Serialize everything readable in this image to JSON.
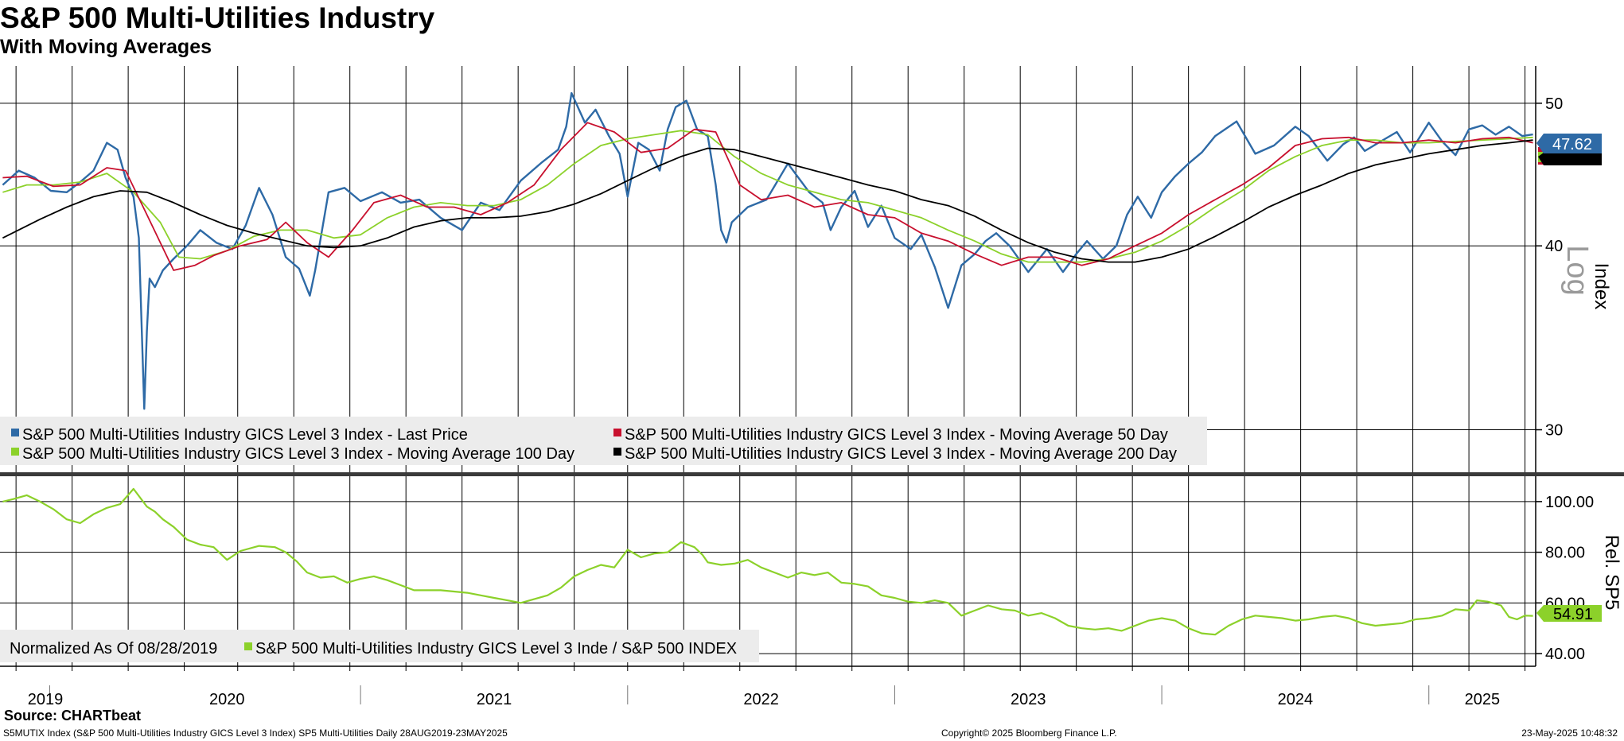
{
  "header": {
    "title": "S&P 500 Multi-Utilities Industry",
    "subtitle": "With Moving Averages"
  },
  "footer": {
    "source": "Source: CHARTbeat",
    "ticker_info": "S5MUTIX Index (S&P 500 Multi-Utilities Industry GICS Level 3 Index) SP5 Multi-Utilities  Daily 28AUG2019-23MAY2025",
    "copyright": "Copyright© 2025 Bloomberg Finance L.P.",
    "timestamp": "23-May-2025 10:48:32"
  },
  "colors": {
    "price": "#2e6aa6",
    "ma50": "#c8102e",
    "ma100": "#8cd12a",
    "ma200": "#000000",
    "relative": "#8cd12a",
    "grid": "#000000"
  },
  "chart_data": [
    {
      "type": "line",
      "panel": "upper",
      "scale": "log",
      "ylabel": "Index",
      "scale_label": "Log",
      "ylim": [
        28.0,
        53.0
      ],
      "yticks": [
        "50",
        "40",
        "30"
      ],
      "ytick_values": [
        50,
        40,
        30
      ],
      "xlim": [
        2019.65,
        2025.4
      ],
      "series": [
        {
          "name": "S&P 500 Multi-Utilities Industry GICS Level 3 Index - Last Price",
          "color_key": "price",
          "last_value": "47.62",
          "x": [
            2019.66,
            2019.72,
            2019.78,
            2019.84,
            2019.9,
            2019.95,
            2020.0,
            2020.05,
            2020.09,
            2020.12,
            2020.15,
            2020.17,
            2020.19,
            2020.2,
            2020.21,
            2020.23,
            2020.26,
            2020.3,
            2020.35,
            2020.4,
            2020.46,
            2020.52,
            2020.57,
            2020.62,
            2020.67,
            2020.72,
            2020.77,
            2020.81,
            2020.83,
            2020.88,
            2020.94,
            2021.0,
            2021.08,
            2021.15,
            2021.22,
            2021.3,
            2021.38,
            2021.45,
            2021.52,
            2021.6,
            2021.68,
            2021.74,
            2021.77,
            2021.79,
            2021.84,
            2021.88,
            2021.93,
            2021.97,
            2022.0,
            2022.04,
            2022.08,
            2022.12,
            2022.15,
            2022.18,
            2022.22,
            2022.26,
            2022.3,
            2022.33,
            2022.35,
            2022.37,
            2022.39,
            2022.45,
            2022.52,
            2022.6,
            2022.68,
            2022.73,
            2022.76,
            2022.8,
            2022.85,
            2022.9,
            2022.95,
            2023.0,
            2023.06,
            2023.1,
            2023.15,
            2023.2,
            2023.25,
            2023.3,
            2023.34,
            2023.38,
            2023.43,
            2023.5,
            2023.57,
            2023.63,
            2023.68,
            2023.72,
            2023.78,
            2023.83,
            2023.87,
            2023.91,
            2023.96,
            2024.0,
            2024.05,
            2024.1,
            2024.15,
            2024.2,
            2024.28,
            2024.35,
            2024.42,
            2024.5,
            2024.55,
            2024.62,
            2024.68,
            2024.72,
            2024.76,
            2024.82,
            2024.88,
            2024.93,
            2025.0,
            2025.05,
            2025.1,
            2025.15,
            2025.2,
            2025.25,
            2025.3,
            2025.35,
            2025.39
          ],
          "values": [
            44.0,
            45.0,
            44.5,
            43.6,
            43.5,
            44.2,
            45.0,
            47.0,
            46.5,
            44.5,
            43.2,
            40.5,
            31.0,
            35.0,
            38.0,
            37.5,
            38.5,
            39.2,
            40.0,
            41.0,
            40.2,
            39.8,
            41.3,
            43.8,
            42.0,
            39.3,
            38.6,
            37.0,
            38.5,
            43.5,
            43.8,
            42.9,
            43.5,
            42.8,
            43.0,
            41.8,
            41.0,
            42.8,
            42.3,
            44.3,
            45.6,
            46.5,
            48.2,
            50.8,
            48.5,
            49.5,
            47.5,
            46.2,
            43.2,
            47.0,
            46.5,
            45.0,
            48.0,
            49.7,
            50.2,
            48.0,
            47.5,
            44.0,
            41.0,
            40.2,
            41.5,
            42.5,
            43.0,
            45.5,
            43.5,
            42.8,
            41.0,
            42.5,
            43.6,
            41.2,
            42.6,
            40.5,
            39.8,
            40.7,
            38.7,
            36.3,
            38.8,
            39.5,
            40.3,
            40.8,
            40.0,
            38.4,
            39.8,
            38.4,
            39.5,
            40.3,
            39.2,
            40.0,
            42.0,
            43.2,
            41.8,
            43.5,
            44.6,
            45.5,
            46.3,
            47.5,
            48.6,
            46.2,
            46.8,
            48.2,
            47.5,
            45.7,
            46.9,
            47.4,
            46.4,
            47.1,
            47.8,
            46.3,
            48.5,
            47.1,
            46.1,
            48.0,
            48.3,
            47.6,
            48.2,
            47.5,
            47.62
          ]
        },
        {
          "name": "S&P 500 Multi-Utilities Industry GICS Level 3 Index - Moving Average 50 Day",
          "color_key": "ma50",
          "last_value": "47.0",
          "x": [
            2019.66,
            2019.75,
            2019.85,
            2019.95,
            2020.05,
            2020.12,
            2020.2,
            2020.3,
            2020.38,
            2020.45,
            2020.55,
            2020.65,
            2020.72,
            2020.8,
            2020.88,
            2020.97,
            2021.05,
            2021.15,
            2021.25,
            2021.35,
            2021.45,
            2021.55,
            2021.65,
            2021.75,
            2021.85,
            2021.95,
            2022.05,
            2022.15,
            2022.25,
            2022.33,
            2022.42,
            2022.5,
            2022.6,
            2022.7,
            2022.8,
            2022.9,
            2023.0,
            2023.1,
            2023.2,
            2023.3,
            2023.4,
            2023.5,
            2023.6,
            2023.7,
            2023.8,
            2023.9,
            2024.0,
            2024.1,
            2024.2,
            2024.3,
            2024.4,
            2024.5,
            2024.6,
            2024.7,
            2024.8,
            2024.9,
            2025.0,
            2025.1,
            2025.2,
            2025.3,
            2025.39
          ],
          "values": [
            44.5,
            44.6,
            43.9,
            44.0,
            45.2,
            45.0,
            42.0,
            38.5,
            38.8,
            39.4,
            40.0,
            40.4,
            41.5,
            40.2,
            39.3,
            41.0,
            42.8,
            43.3,
            42.5,
            42.5,
            42.0,
            42.8,
            44.0,
            46.5,
            48.5,
            47.8,
            46.3,
            46.6,
            48.0,
            47.8,
            44.0,
            43.0,
            43.3,
            42.5,
            42.8,
            42.0,
            41.8,
            40.8,
            40.3,
            39.5,
            38.8,
            39.3,
            39.3,
            38.8,
            39.2,
            40.0,
            40.8,
            42.0,
            43.0,
            44.0,
            45.2,
            46.8,
            47.3,
            47.4,
            47.0,
            47.0,
            47.2,
            47.0,
            47.3,
            47.4,
            47.0
          ]
        },
        {
          "name": "S&P 500 Multi-Utilities Industry GICS Level 3 Index - Moving Average 100 Day",
          "color_key": "ma100",
          "last_value": "47.4",
          "x": [
            2019.66,
            2019.75,
            2019.85,
            2019.95,
            2020.05,
            2020.15,
            2020.25,
            2020.32,
            2020.4,
            2020.5,
            2020.6,
            2020.7,
            2020.8,
            2020.9,
            2021.0,
            2021.1,
            2021.2,
            2021.3,
            2021.4,
            2021.5,
            2021.6,
            2021.7,
            2021.8,
            2021.9,
            2022.0,
            2022.1,
            2022.2,
            2022.3,
            2022.4,
            2022.5,
            2022.6,
            2022.7,
            2022.8,
            2022.9,
            2023.0,
            2023.1,
            2023.2,
            2023.3,
            2023.4,
            2023.5,
            2023.6,
            2023.7,
            2023.8,
            2023.9,
            2024.0,
            2024.1,
            2024.2,
            2024.3,
            2024.4,
            2024.5,
            2024.6,
            2024.7,
            2024.8,
            2024.9,
            2025.0,
            2025.1,
            2025.2,
            2025.3,
            2025.39
          ],
          "values": [
            43.5,
            44.0,
            44.0,
            44.2,
            44.8,
            43.5,
            41.5,
            39.3,
            39.2,
            39.7,
            40.6,
            41.0,
            41.0,
            40.5,
            40.7,
            41.8,
            42.5,
            42.8,
            42.6,
            42.6,
            43.0,
            44.0,
            45.5,
            46.8,
            47.3,
            47.6,
            47.9,
            47.6,
            46.0,
            44.8,
            44.0,
            43.5,
            43.0,
            42.8,
            42.3,
            41.8,
            41.0,
            40.3,
            39.5,
            39.0,
            39.0,
            39.0,
            39.2,
            39.6,
            40.3,
            41.3,
            42.5,
            43.6,
            45.0,
            46.0,
            46.8,
            47.2,
            47.2,
            47.0,
            47.0,
            47.1,
            47.2,
            47.3,
            47.4
          ]
        },
        {
          "name": "S&P 500 Multi-Utilities Industry GICS Level 3 Index - Moving Average 200 Day",
          "color_key": "ma200",
          "last_value": "47.2",
          "x": [
            2019.66,
            2019.8,
            2019.9,
            2020.0,
            2020.1,
            2020.2,
            2020.3,
            2020.4,
            2020.5,
            2020.6,
            2020.7,
            2020.8,
            2020.9,
            2021.0,
            2021.1,
            2021.2,
            2021.3,
            2021.4,
            2021.5,
            2021.6,
            2021.7,
            2021.8,
            2021.9,
            2022.0,
            2022.1,
            2022.2,
            2022.3,
            2022.4,
            2022.5,
            2022.6,
            2022.7,
            2022.8,
            2022.9,
            2023.0,
            2023.1,
            2023.2,
            2023.3,
            2023.4,
            2023.5,
            2023.6,
            2023.7,
            2023.8,
            2023.9,
            2024.0,
            2024.1,
            2024.2,
            2024.3,
            2024.4,
            2024.5,
            2024.6,
            2024.7,
            2024.8,
            2024.9,
            2025.0,
            2025.1,
            2025.2,
            2025.3,
            2025.39
          ],
          "values": [
            40.5,
            41.7,
            42.5,
            43.2,
            43.6,
            43.5,
            42.8,
            42.0,
            41.3,
            40.8,
            40.4,
            40.0,
            39.9,
            40.0,
            40.5,
            41.2,
            41.6,
            41.8,
            41.8,
            41.9,
            42.2,
            42.7,
            43.4,
            44.3,
            45.2,
            46.0,
            46.6,
            46.5,
            46.0,
            45.5,
            45.0,
            44.5,
            44.0,
            43.6,
            43.0,
            42.6,
            41.9,
            41.0,
            40.2,
            39.6,
            39.2,
            39.0,
            39.0,
            39.3,
            39.8,
            40.6,
            41.5,
            42.5,
            43.3,
            44.0,
            44.8,
            45.4,
            45.8,
            46.2,
            46.5,
            46.8,
            47.0,
            47.2
          ]
        }
      ],
      "legend_location": "lower-left"
    },
    {
      "type": "line",
      "panel": "lower",
      "ylabel": "Rel. SP5",
      "ylim": [
        35.0,
        110.0
      ],
      "yticks": [
        "100.00",
        "80.00",
        "60.00",
        "40.00"
      ],
      "ytick_values": [
        100,
        80,
        60,
        40
      ],
      "note": "Normalized As Of 08/28/2019",
      "series": [
        {
          "name": "S&P 500 Multi-Utilities Industry GICS Level 3 Inde / S&P 500 INDEX",
          "color_key": "relative",
          "last_value": "54.91",
          "x": [
            2019.66,
            2019.7,
            2019.75,
            2019.8,
            2019.85,
            2019.9,
            2019.95,
            2020.0,
            2020.05,
            2020.1,
            2020.15,
            2020.2,
            2020.23,
            2020.26,
            2020.3,
            2020.35,
            2020.4,
            2020.45,
            2020.5,
            2020.55,
            2020.62,
            2020.68,
            2020.72,
            2020.76,
            2020.8,
            2020.85,
            2020.9,
            2020.95,
            2021.0,
            2021.05,
            2021.1,
            2021.15,
            2021.2,
            2021.3,
            2021.4,
            2021.45,
            2021.5,
            2021.55,
            2021.6,
            2021.65,
            2021.7,
            2021.75,
            2021.8,
            2021.85,
            2021.9,
            2021.95,
            2022.0,
            2022.05,
            2022.1,
            2022.15,
            2022.2,
            2022.25,
            2022.28,
            2022.3,
            2022.35,
            2022.4,
            2022.45,
            2022.5,
            2022.55,
            2022.6,
            2022.65,
            2022.7,
            2022.75,
            2022.8,
            2022.85,
            2022.9,
            2022.95,
            2023.0,
            2023.05,
            2023.1,
            2023.15,
            2023.2,
            2023.25,
            2023.3,
            2023.35,
            2023.4,
            2023.45,
            2023.5,
            2023.55,
            2023.6,
            2023.65,
            2023.7,
            2023.75,
            2023.8,
            2023.85,
            2023.9,
            2023.95,
            2024.0,
            2024.05,
            2024.1,
            2024.15,
            2024.2,
            2024.25,
            2024.3,
            2024.35,
            2024.4,
            2024.45,
            2024.5,
            2024.55,
            2024.6,
            2024.65,
            2024.7,
            2024.75,
            2024.8,
            2024.85,
            2024.9,
            2024.95,
            2025.0,
            2025.05,
            2025.1,
            2025.15,
            2025.18,
            2025.22,
            2025.27,
            2025.3,
            2025.33,
            2025.36,
            2025.39
          ],
          "values": [
            100.0,
            101.0,
            102.5,
            100.0,
            97.0,
            93.0,
            91.5,
            95.0,
            97.5,
            99.0,
            105.0,
            98.0,
            96.0,
            93.0,
            90.0,
            85.0,
            83.0,
            82.0,
            77.0,
            80.5,
            82.5,
            82.0,
            80.0,
            76.5,
            72.0,
            70.0,
            70.5,
            68.0,
            69.5,
            70.5,
            69.0,
            67.0,
            65.0,
            65.0,
            64.0,
            63.0,
            62.0,
            61.0,
            60.0,
            61.5,
            63.0,
            66.0,
            70.5,
            73.0,
            75.0,
            74.0,
            81.0,
            78.0,
            79.5,
            80.0,
            84.0,
            82.0,
            79.0,
            76.0,
            75.0,
            75.5,
            77.0,
            74.0,
            72.0,
            70.0,
            72.0,
            71.0,
            72.0,
            68.0,
            67.5,
            66.5,
            63.0,
            62.0,
            60.5,
            60.0,
            61.0,
            60.0,
            55.0,
            57.0,
            59.0,
            57.5,
            57.0,
            55.0,
            56.0,
            54.0,
            51.0,
            50.0,
            49.5,
            50.0,
            49.0,
            51.0,
            53.0,
            54.0,
            53.0,
            50.0,
            48.0,
            47.5,
            51.0,
            53.5,
            55.0,
            54.5,
            54.0,
            53.0,
            53.5,
            54.5,
            55.0,
            54.0,
            52.0,
            51.0,
            51.5,
            52.0,
            53.5,
            54.0,
            55.0,
            57.5,
            57.0,
            61.0,
            60.5,
            59.0,
            54.5,
            53.5,
            55.0,
            54.91
          ]
        }
      ],
      "legend_location": "lower-left"
    }
  ],
  "x_axis": {
    "labels": [
      "2019",
      "2020",
      "2021",
      "2022",
      "2023",
      "2024",
      "2025"
    ],
    "label_values": [
      2019.82,
      2020.5,
      2021.5,
      2022.5,
      2023.5,
      2024.5,
      2025.2
    ],
    "year_ticks": [
      2020.0,
      2021.0,
      2022.0,
      2023.0,
      2024.0,
      2025.0
    ],
    "gridlines": [
      2019.71,
      2019.92,
      2020.13,
      2020.34,
      2020.54,
      2020.75,
      2020.96,
      2021.17,
      2021.38,
      2021.59,
      2021.8,
      2022.0,
      2022.21,
      2022.42,
      2022.63,
      2022.84,
      2023.05,
      2023.26,
      2023.47,
      2023.68,
      2023.89,
      2024.1,
      2024.31,
      2024.52,
      2024.73,
      2024.94,
      2025.15,
      2025.36
    ]
  }
}
